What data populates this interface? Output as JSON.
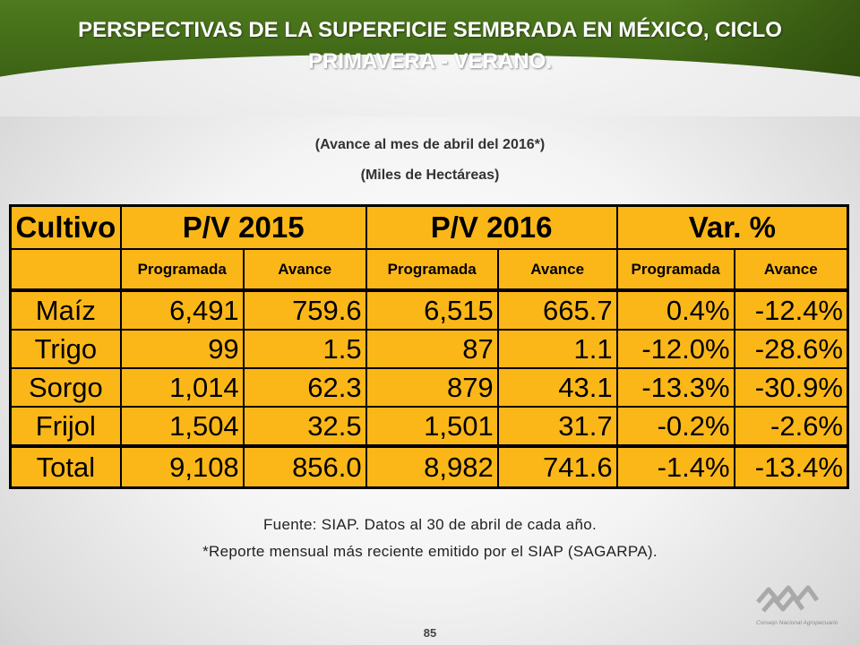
{
  "title": "PERSPECTIVAS DE LA SUPERFICIE SEMBRADA EN MÉXICO, CICLO PRIMAVERA - VERANO.",
  "subtitle1": "(Avance al mes de abril del 2016*)",
  "subtitle2": "(Miles de Hectáreas)",
  "table": {
    "headers": [
      "Cultivo",
      "P/V 2015",
      "P/V 2016",
      "Var. %"
    ],
    "subheaders": [
      "Programada",
      "Avance",
      "Programada",
      "Avance",
      "Programada",
      "Avance"
    ],
    "rows": [
      {
        "name": "Maíz",
        "values": [
          "6,491",
          "759.6",
          "6,515",
          "665.7",
          "0.4%",
          "-12.4%"
        ]
      },
      {
        "name": "Trigo",
        "values": [
          "99",
          "1.5",
          "87",
          "1.1",
          "-12.0%",
          "-28.6%"
        ]
      },
      {
        "name": "Sorgo",
        "values": [
          "1,014",
          "62.3",
          "879",
          "43.1",
          "-13.3%",
          "-30.9%"
        ]
      },
      {
        "name": "Frijol",
        "values": [
          "1,504",
          "32.5",
          "1,501",
          "31.7",
          "-0.2%",
          "-2.6%"
        ]
      }
    ],
    "total": {
      "name": "Total",
      "values": [
        "9,108",
        "856.0",
        "8,982",
        "741.6",
        "-1.4%",
        "-13.4%"
      ]
    }
  },
  "source1": "Fuente: SIAP. Datos al 30 de abril de cada año.",
  "source2": "*Reporte mensual más reciente emitido por el SIAP (SAGARPA).",
  "logo_text": "Consejo Nacional Agropecuario",
  "page_number": "85",
  "colors": {
    "header_green": "#3f6716",
    "table_fill": "#fbb718",
    "title_text": "#ffffff"
  }
}
